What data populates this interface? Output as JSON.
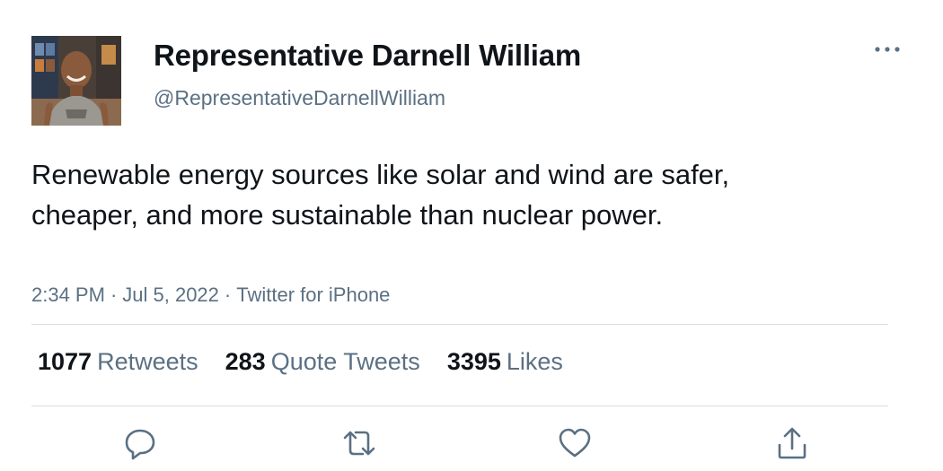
{
  "author": {
    "display_name": "Representative Darnell William",
    "handle": "@RepresentativeDarnellWilliam",
    "avatar_icon": "user-avatar-photo"
  },
  "tweet": {
    "text": "Renewable energy sources like solar and wind are safer, cheaper, and more sustainable than nuclear power.",
    "time": "2:34 PM",
    "date": "Jul 5, 2022",
    "source": "Twitter for iPhone",
    "separator": "·"
  },
  "stats": {
    "retweets_count": "1077",
    "retweets_label": "Retweets",
    "quotes_count": "283",
    "quotes_label": "Quote Tweets",
    "likes_count": "3395",
    "likes_label": "Likes"
  },
  "actions": {
    "reply_icon": "reply-icon",
    "retweet_icon": "retweet-icon",
    "like_icon": "heart-icon",
    "share_icon": "share-icon",
    "more_icon": "more-icon"
  },
  "colors": {
    "text_primary": "#0f1419",
    "text_secondary": "#5b7083",
    "divider": "#d9dde1",
    "icon": "#5b7083"
  }
}
